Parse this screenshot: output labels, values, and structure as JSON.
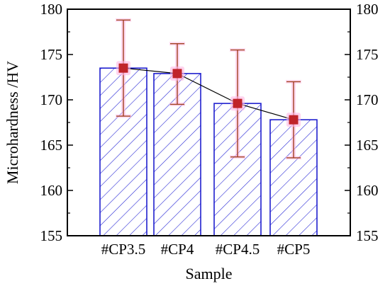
{
  "chart_data": {
    "type": "bar",
    "title": "",
    "xlabel": "Sample",
    "ylabel": "Microhardness /HV",
    "categories": [
      "#CP3.5",
      "#CP4",
      "#CP4.5",
      "#CP5"
    ],
    "values": [
      173.5,
      172.9,
      169.6,
      167.8
    ],
    "error_upper": [
      178.8,
      176.2,
      175.5,
      172.0
    ],
    "error_lower": [
      168.2,
      169.5,
      163.7,
      163.6
    ],
    "line_series": {
      "values": [
        173.5,
        172.9,
        169.6,
        167.8
      ],
      "marker": "square"
    },
    "ylim": [
      155,
      180
    ],
    "yticks": [
      "155",
      "160",
      "165",
      "170",
      "175",
      "180"
    ],
    "ytick_values": [
      155,
      160,
      165,
      170,
      175,
      180
    ],
    "right_axis_mirrored": true,
    "grid": false,
    "legend": "none",
    "colors": {
      "bar_edge": "#1f1fcf",
      "bar_hatch": "#2a2ad6",
      "bar_fill": "#ffffff",
      "marker": "#c0242a",
      "marker_glow": "#ffb8e4",
      "error_bar": "#a04020",
      "connector_line": "#000000",
      "axis": "#000000"
    }
  }
}
